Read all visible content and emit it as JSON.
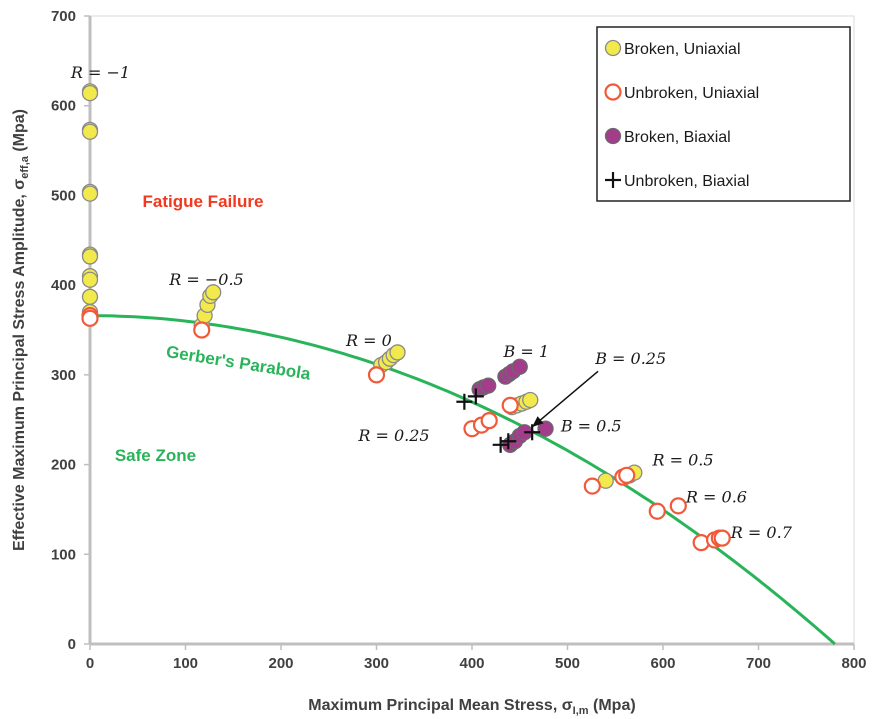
{
  "chart_data": {
    "type": "scatter",
    "xlabel": "Maximum Principal Mean Stress, σ",
    "xlabel_sub": "I,m",
    "xlabel_unit": " (Mpa)",
    "ylabel": "Effective Maximum Principal Stress Amplitude, σ",
    "ylabel_sub": "eff,a",
    "ylabel_unit": " (Mpa)",
    "xlim": [
      0,
      800
    ],
    "ylim": [
      0,
      700
    ],
    "xticks": [
      0,
      100,
      200,
      300,
      400,
      500,
      600,
      700,
      800
    ],
    "yticks": [
      0,
      100,
      200,
      300,
      400,
      500,
      600,
      700
    ],
    "grid": false,
    "legend_position": "top-right",
    "series": [
      {
        "name": "Broken, Uniaxial",
        "marker": "circle-filled",
        "fill": "#f2ea4c",
        "stroke": "#8a8a8a",
        "points": [
          [
            0,
            616
          ],
          [
            0,
            614
          ],
          [
            0,
            573
          ],
          [
            0,
            571
          ],
          [
            0,
            504
          ],
          [
            0,
            502
          ],
          [
            0,
            434
          ],
          [
            0,
            432
          ],
          [
            0,
            410
          ],
          [
            0,
            406
          ],
          [
            0,
            387
          ],
          [
            0,
            370
          ],
          [
            117,
            355
          ],
          [
            120,
            366
          ],
          [
            123,
            378
          ],
          [
            126,
            388
          ],
          [
            129,
            392
          ],
          [
            305,
            311
          ],
          [
            310,
            314
          ],
          [
            314,
            318
          ],
          [
            318,
            322
          ],
          [
            322,
            325
          ],
          [
            442,
            264
          ],
          [
            447,
            266
          ],
          [
            452,
            268
          ],
          [
            457,
            270
          ],
          [
            461,
            272
          ],
          [
            540,
            182
          ],
          [
            560,
            186
          ],
          [
            565,
            188
          ],
          [
            570,
            191
          ]
        ]
      },
      {
        "name": "Unbroken, Uniaxial",
        "marker": "circle-open",
        "fill": "#ffffff",
        "stroke": "#f05a3a",
        "points": [
          [
            0,
            366
          ],
          [
            0,
            363
          ],
          [
            117,
            350
          ],
          [
            300,
            300
          ],
          [
            400,
            240
          ],
          [
            410,
            244
          ],
          [
            418,
            249
          ],
          [
            440,
            266
          ],
          [
            526,
            176
          ],
          [
            558,
            186
          ],
          [
            562,
            188
          ],
          [
            594,
            148
          ],
          [
            616,
            154
          ],
          [
            640,
            113
          ],
          [
            654,
            116
          ],
          [
            659,
            118
          ],
          [
            662,
            118
          ]
        ]
      },
      {
        "name": "Broken, Biaxial",
        "marker": "circle-filled",
        "fill": "#a43c8c",
        "stroke": "#6a6a6a",
        "points": [
          [
            408,
            284
          ],
          [
            412,
            286
          ],
          [
            417,
            288
          ],
          [
            435,
            298
          ],
          [
            439,
            301
          ],
          [
            443,
            304
          ],
          [
            450,
            309
          ],
          [
            440,
            222
          ],
          [
            445,
            226
          ],
          [
            450,
            232
          ],
          [
            455,
            236
          ],
          [
            477,
            240
          ]
        ]
      },
      {
        "name": "Unbroken, Biaxial",
        "marker": "plus",
        "fill": "none",
        "stroke": "#111111",
        "points": [
          [
            392,
            270
          ],
          [
            404,
            276
          ],
          [
            430,
            222
          ],
          [
            438,
            226
          ],
          [
            463,
            236
          ]
        ]
      }
    ],
    "curve": {
      "name": "Gerber's Parabola",
      "color": "#2ab45a",
      "sigma_a": 366,
      "sigma_u": 780
    },
    "annotations": [
      {
        "text": "R = −1",
        "x": -20,
        "y": 631
      },
      {
        "text": "R = −0.5",
        "x": 83,
        "y": 400
      },
      {
        "text": "R = 0",
        "x": 268,
        "y": 332
      },
      {
        "text": "B = 1",
        "x": 433,
        "y": 320
      },
      {
        "text": "B = 0.25",
        "x": 529,
        "y": 312
      },
      {
        "text": "R = 0.25",
        "x": 281,
        "y": 226
      },
      {
        "text": "B = 0.5",
        "x": 493,
        "y": 237
      },
      {
        "text": "R = 0.5",
        "x": 589,
        "y": 199
      },
      {
        "text": "R = 0.6",
        "x": 624,
        "y": 158
      },
      {
        "text": "R = 0.7",
        "x": 671,
        "y": 118
      }
    ],
    "arrow": {
      "from": [
        532,
        304
      ],
      "to": [
        463,
        242
      ]
    },
    "zones": [
      {
        "text": "Fatigue Failure",
        "x": 55,
        "y": 487,
        "color": "#f0391f"
      },
      {
        "text": "Safe Zone",
        "x": 26,
        "y": 204,
        "color": "#2ab45a"
      },
      {
        "text": "Gerber's Parabola",
        "x": 79,
        "y": 320,
        "color": "#2ab45a",
        "rotate": 9
      }
    ]
  }
}
